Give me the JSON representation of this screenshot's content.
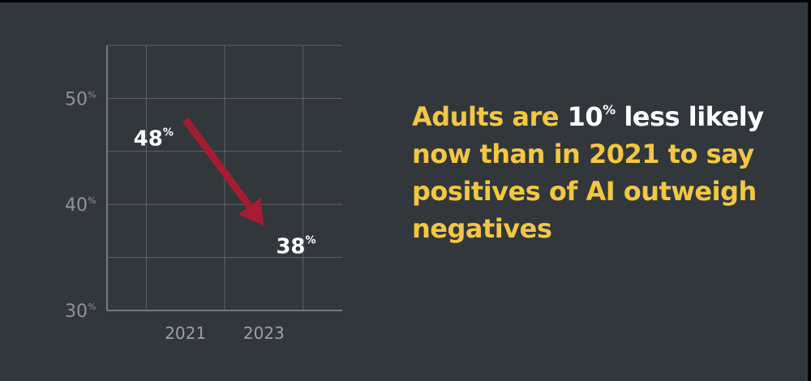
{
  "chart_data": {
    "type": "line",
    "x": [
      "2021",
      "2023"
    ],
    "series": [
      {
        "values": [
          48,
          38
        ]
      }
    ],
    "yticks": [
      {
        "value": 50,
        "label": "50",
        "suffix": "%"
      },
      {
        "value": 40,
        "label": "40",
        "suffix": "%"
      },
      {
        "value": 30,
        "label": "30",
        "suffix": "%"
      }
    ],
    "data_labels": [
      {
        "label": "48",
        "suffix": "%"
      },
      {
        "label": "38",
        "suffix": "%"
      }
    ],
    "ylim": [
      30,
      55
    ],
    "xlim": [
      2019,
      2025
    ],
    "grid": true,
    "colors": {
      "arrow": "#a51c30",
      "grid": "#5f6469",
      "axis": "#8a8f94"
    }
  },
  "headline": {
    "p1": "Adults are ",
    "highlight": "10",
    "highlight_suffix": "%",
    "highlight_rest": " less likely",
    "p2": "now than in 2021 to say positives of AI outweigh negatives",
    "colors": {
      "text": "#f2c744",
      "highlight": "#ffffff"
    }
  }
}
